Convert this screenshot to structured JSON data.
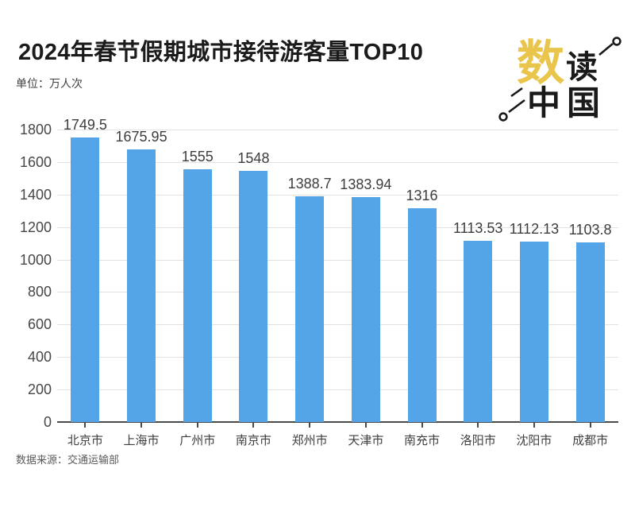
{
  "header": {
    "title": "2024年春节假期城市接待游客量TOP10",
    "unit_label": "单位：万人次"
  },
  "logo": {
    "char_primary": "数",
    "char_secondary": "读",
    "char_row2_first": "中",
    "char_row2_second": "国",
    "accent_color": "#e9c54b",
    "ink_color": "#1a1a1a"
  },
  "chart_data": {
    "type": "bar",
    "title": "2024年春节假期城市接待游客量TOP10",
    "unit": "万人次",
    "categories": [
      "北京市",
      "上海市",
      "广州市",
      "南京市",
      "郑州市",
      "天津市",
      "南充市",
      "洛阳市",
      "沈阳市",
      "成都市"
    ],
    "values": [
      1749.5,
      1675.95,
      1555,
      1548,
      1388.7,
      1383.94,
      1316,
      1113.53,
      1112.13,
      1103.8
    ],
    "value_labels": [
      "1749.5",
      "1675.95",
      "1555",
      "1548",
      "1388.7",
      "1383.94",
      "1316",
      "1113.53",
      "1112.13",
      "1103.8"
    ],
    "xlabel": "",
    "ylabel": "万人次",
    "ylim": [
      0,
      1800
    ],
    "yticks": [
      0,
      200,
      400,
      600,
      800,
      1000,
      1200,
      1400,
      1600,
      1800
    ],
    "grid": true,
    "legend_position": "none",
    "bar_color": "#54a5e8",
    "grid_color": "#e2e2e2",
    "axis_color": "#4a4a4a"
  },
  "footer": {
    "source": "数据来源：交通运输部"
  }
}
